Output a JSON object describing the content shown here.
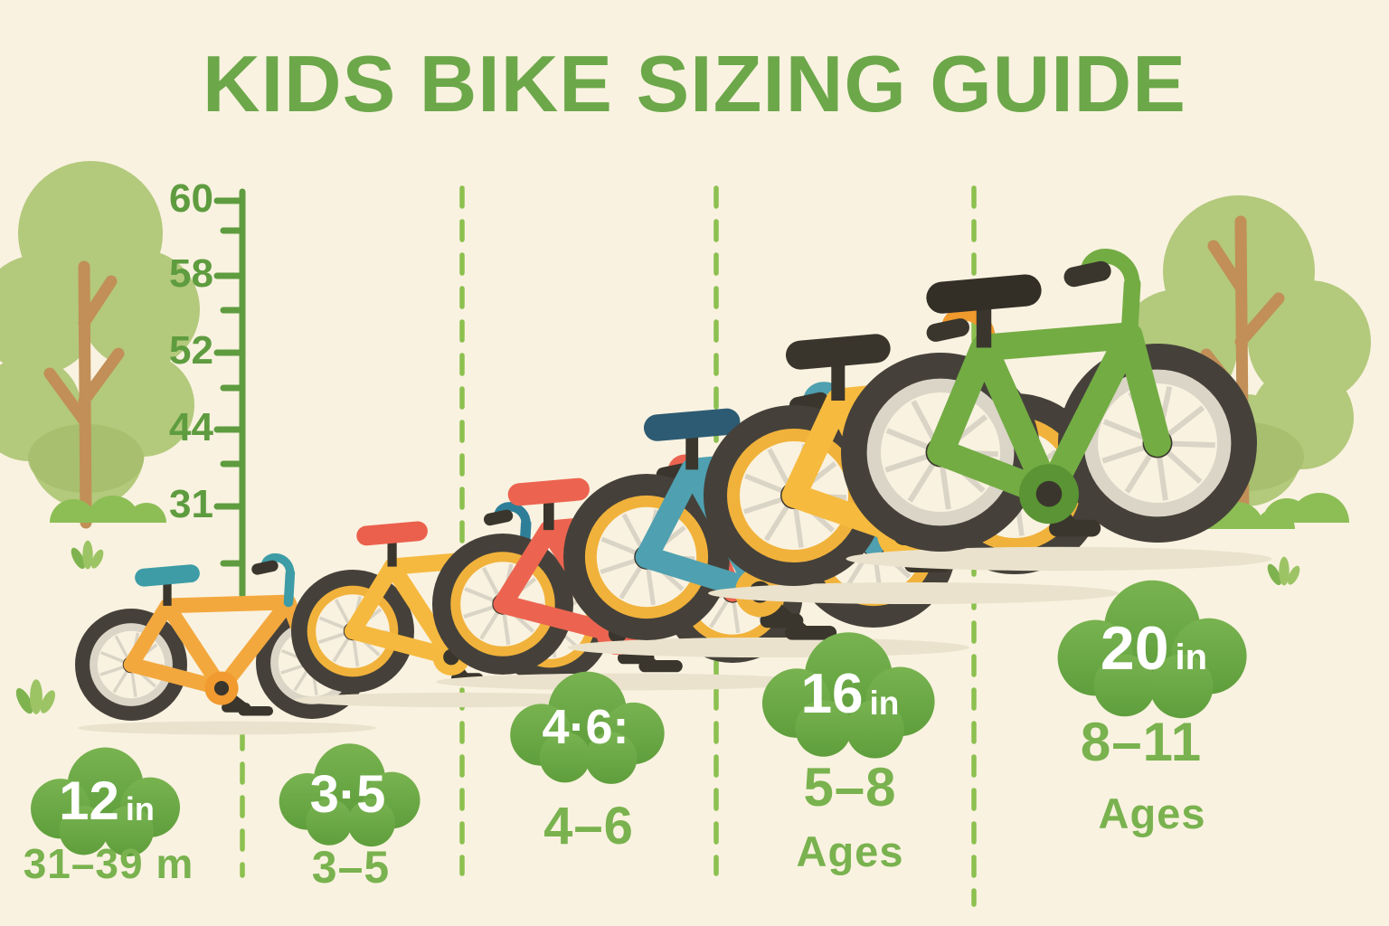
{
  "title": "KIDS BIKE SIZING GUIDE",
  "ruler": {
    "tick_labels": [
      "60",
      "58",
      "52",
      "44",
      "31"
    ]
  },
  "columns": [
    {
      "wheel_size": "12",
      "wheel_unit": "in",
      "age_range": "31–39 m",
      "age_caption": ""
    },
    {
      "wheel_size": "3·5",
      "wheel_unit": "",
      "age_range": "3–5",
      "age_caption": ""
    },
    {
      "wheel_size": "4·6:",
      "wheel_unit": "",
      "age_range": "4–6",
      "age_caption": ""
    },
    {
      "wheel_size": "16",
      "wheel_unit": "in",
      "age_range": "5–8",
      "age_caption": "Ages"
    },
    {
      "wheel_size": "20",
      "wheel_unit": "in",
      "age_range": "8–11",
      "age_caption": "Ages"
    }
  ],
  "bikes": [
    {
      "name": "orange-balance",
      "frame": "#F3A83E",
      "saddle": "#3D9CA6",
      "handlebar": "#3D9CA6",
      "rim": "#DAD5C7",
      "crank": "#F09A2F",
      "kickstand": true
    },
    {
      "name": "yellow-small",
      "frame": "#F6B93F",
      "saddle": "#EB604C",
      "handlebar": "#2E7E98",
      "rim": "#F1B23B",
      "crank": "#F6B93F",
      "kickstand": false
    },
    {
      "name": "red",
      "frame": "#EC6450",
      "saddle": "#EC6450",
      "handlebar": "#EC6450",
      "rim": "#F1B23B",
      "crank": "#EC6450",
      "kickstand": true
    },
    {
      "name": "teal",
      "frame": "#4FA0B0",
      "saddle": "#2D5B73",
      "handlebar": "#4FA0B0",
      "rim": "#F1B23B",
      "crank": "#F1B23B",
      "kickstand": true
    },
    {
      "name": "yellow-16",
      "frame": "#F6BA3E",
      "saddle": "#3A352C",
      "handlebar": "#F0992D",
      "rim": "#F1B23B",
      "crank": "#F6BA3E",
      "kickstand": false
    },
    {
      "name": "green-20",
      "frame": "#73AC43",
      "saddle": "#332F27",
      "handlebar": "#73AC43",
      "rim": "#DAD5C7",
      "crank": "#5A9434",
      "kickstand": false
    }
  ],
  "colors": {
    "background": "#F9F2E0",
    "title_green": "#6CA74A",
    "label_green": "#79B24E",
    "ruler_green": "#5E9C3F",
    "divider_green": "#8CC04F",
    "cloud_green_top": "#78B350",
    "cloud_green_bottom": "#5F9E3C",
    "tree_canopy": "#B3C97C",
    "trunk_brown": "#C18F57",
    "tire_dark": "#45413A",
    "shadow": "#EAE2CC"
  }
}
